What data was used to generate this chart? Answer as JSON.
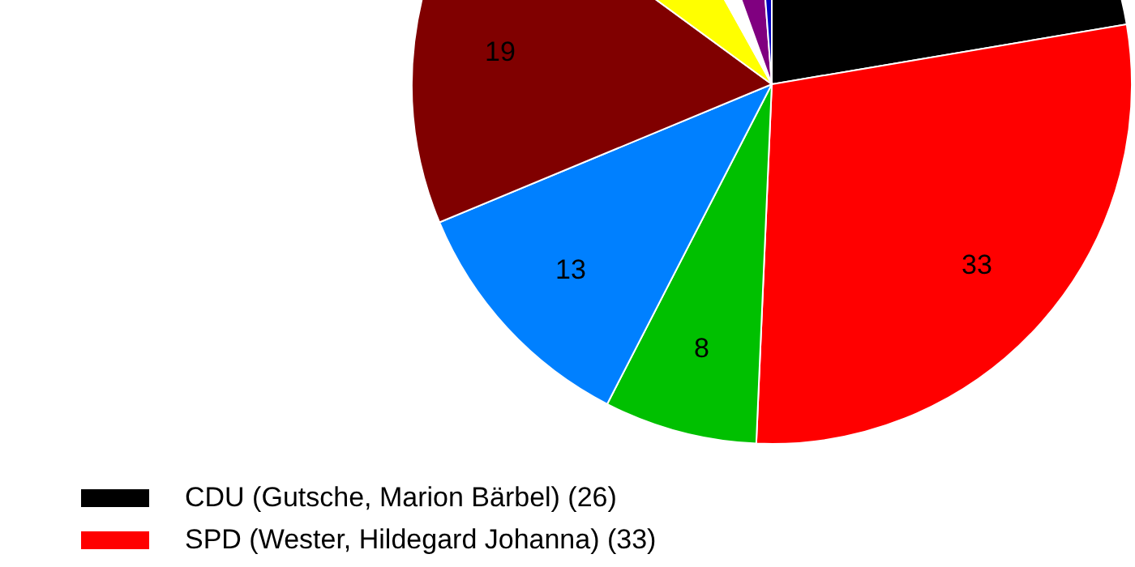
{
  "chart_data": {
    "type": "pie",
    "categories": [
      "CDU (Gutsche, Marion Bärbel) (26)",
      "SPD (Wester, Hildegard Johanna) (33)",
      null,
      null,
      null,
      null,
      null,
      null,
      null
    ],
    "values": [
      26,
      33,
      8,
      13,
      19,
      8,
      3,
      5,
      1.4
    ],
    "value_labels": [
      null,
      "33",
      "8",
      "13",
      "19",
      null,
      null,
      null,
      null
    ],
    "colors": [
      "#000000",
      "#ff0000",
      "#00c000",
      "#0080ff",
      "#800000",
      "#ffff00",
      "#ffffff",
      "#800080",
      "#0000c0"
    ],
    "legend": "bottom"
  }
}
